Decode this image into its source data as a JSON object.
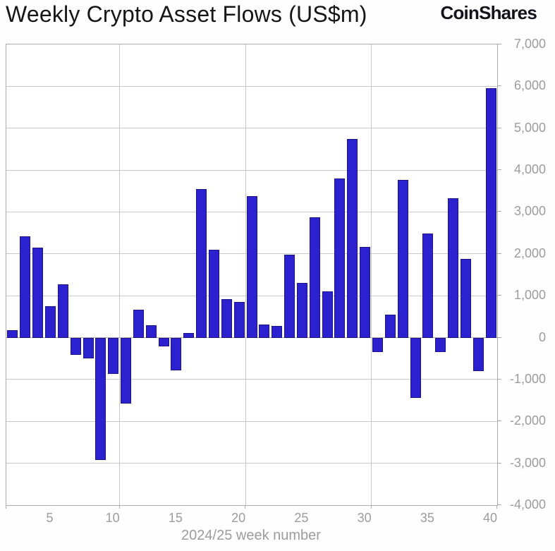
{
  "header": {
    "title": "Weekly Crypto Asset Flows (US$m)",
    "logo": "CoinShares"
  },
  "chart_data": {
    "type": "bar",
    "title": "Weekly Crypto Asset Flows (US$m)",
    "xlabel": "2024/25 week number",
    "ylabel": "",
    "ylim": [
      -4000,
      7000
    ],
    "y_tick_step": 1000,
    "y_ticks": [
      7000,
      6000,
      5000,
      4000,
      3000,
      2000,
      1000,
      0,
      -1000,
      -2000,
      -3000,
      -4000
    ],
    "x_ticks": [
      5,
      10,
      15,
      20,
      25,
      30,
      35,
      40
    ],
    "x_gridline_after_weeks": [
      10,
      20,
      30
    ],
    "grid": "on",
    "legend": "none",
    "y_axis_side": "right",
    "bar_color": "#2b21ce",
    "categories": [
      2,
      3,
      4,
      5,
      6,
      7,
      8,
      9,
      10,
      11,
      12,
      13,
      14,
      15,
      16,
      17,
      18,
      19,
      20,
      21,
      22,
      23,
      24,
      25,
      26,
      27,
      28,
      29,
      30,
      31,
      32,
      33,
      34,
      35,
      36,
      37,
      38,
      39,
      40
    ],
    "values": [
      180,
      2420,
      2150,
      750,
      1270,
      -410,
      -500,
      -2930,
      -870,
      -1580,
      660,
      290,
      -210,
      -790,
      110,
      3550,
      2090,
      920,
      855,
      3370,
      310,
      275,
      1980,
      1300,
      2870,
      1110,
      3800,
      4750,
      2160,
      -350,
      550,
      3770,
      -1440,
      2480,
      -350,
      3320,
      1880,
      -800,
      5950
    ]
  }
}
